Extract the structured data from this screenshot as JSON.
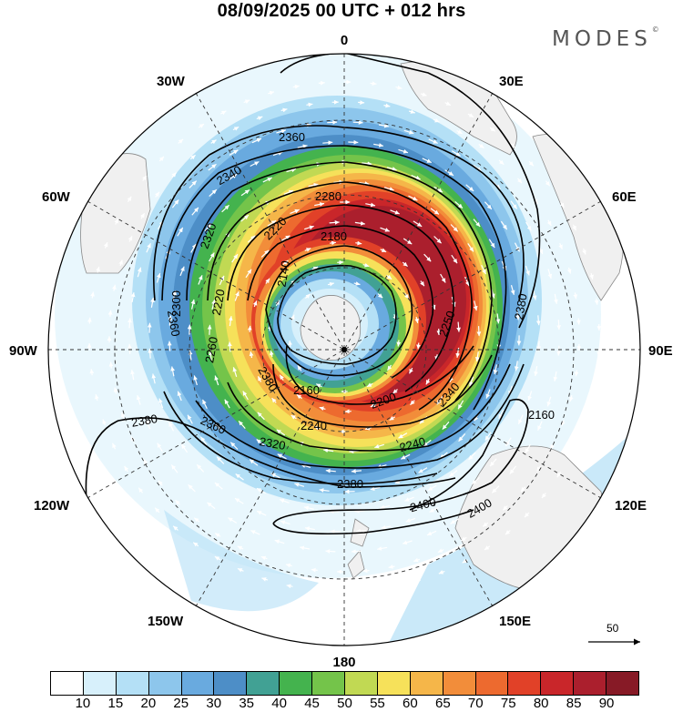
{
  "title": "08/09/2025  00 UTC  + 012 hrs",
  "brand": "MODES",
  "brand_mark": "©",
  "longitude_labels": {
    "top": "0",
    "bottom": "180",
    "left": "90W",
    "right": "90E",
    "upper_left_30": "30W",
    "upper_right_30": "30E",
    "left_60": "60W",
    "right_60": "60E",
    "lower_left_120": "120W",
    "lower_right_120": "120E",
    "lower_left_150": "150W",
    "lower_right_150": "150E"
  },
  "vector_reference": {
    "value": "50"
  },
  "contour_labels": [
    "2360",
    "2340",
    "2280",
    "2220",
    "2180",
    "2140",
    "2320",
    "2300",
    "2220",
    "2260",
    "2360",
    "2380",
    "2160",
    "2200",
    "2240",
    "2250",
    "2340",
    "2380",
    "2380",
    "2360",
    "2320",
    "2240",
    "2380",
    "2400",
    "2400",
    "2160"
  ],
  "colorbar": {
    "colors": [
      "#ffffff",
      "#d7f0fb",
      "#b4e0f6",
      "#8dc6ec",
      "#69aadf",
      "#4d8ec7",
      "#41a194",
      "#44b34e",
      "#74c44a",
      "#c1d953",
      "#f6e15a",
      "#f5b649",
      "#f28d3a",
      "#ed6a2f",
      "#e14128",
      "#c9262a",
      "#ab1f2d",
      "#871a26"
    ],
    "labels": [
      "10",
      "15",
      "20",
      "25",
      "30",
      "35",
      "40",
      "45",
      "50",
      "55",
      "60",
      "65",
      "70",
      "75",
      "80",
      "85",
      "90"
    ]
  }
}
